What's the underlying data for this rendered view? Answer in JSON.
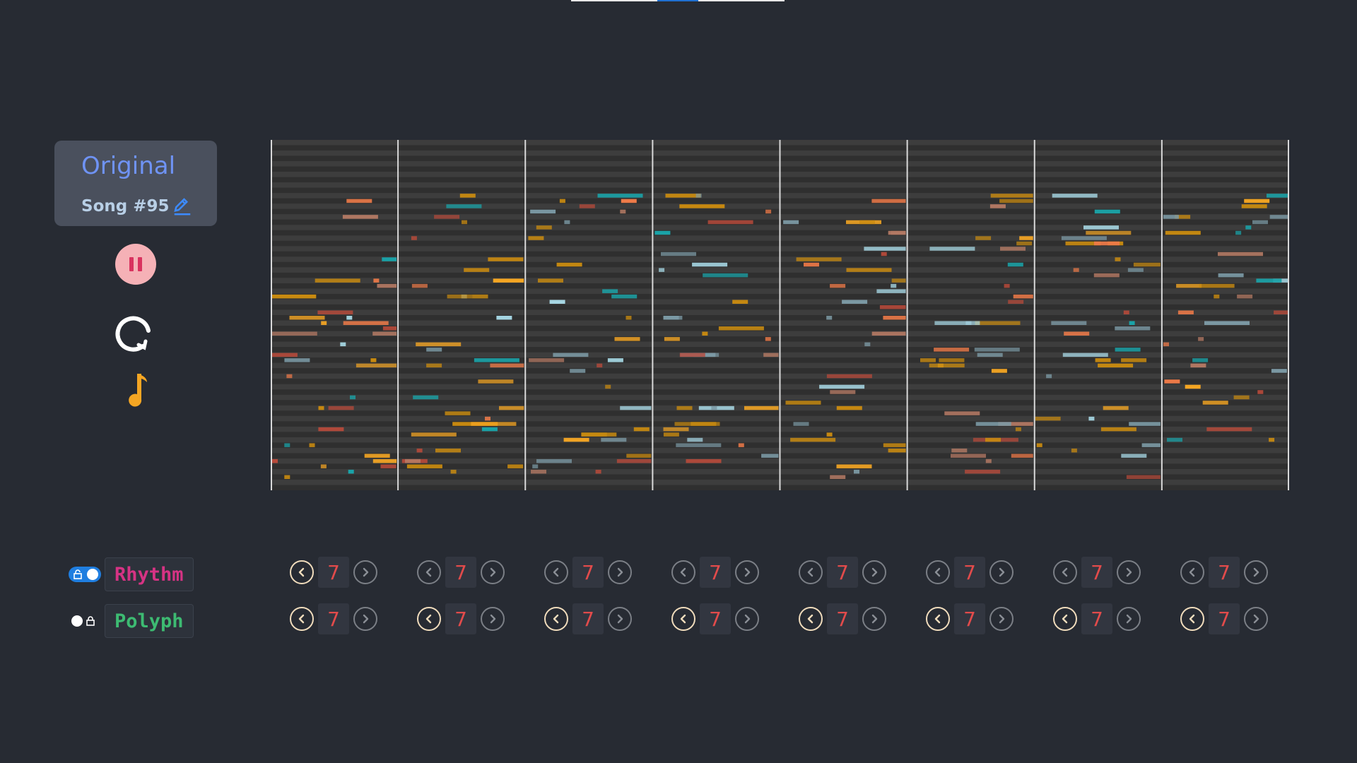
{
  "song": {
    "mode": "Original",
    "name": "Song #95"
  },
  "controls": [
    {
      "name": "pause",
      "icon": "pause-icon",
      "color": "#f5b1b6"
    },
    {
      "name": "loop",
      "icon": "loop-icon",
      "color": "#ffffff"
    },
    {
      "name": "instrument",
      "icon": "music-note-icon",
      "color": "#f5a623"
    }
  ],
  "tracks": [
    {
      "label": "Rhythm",
      "color": "#d63384",
      "toggle_on": true,
      "locked": true,
      "values": [
        "7",
        "7",
        "7",
        "7",
        "7",
        "7",
        "7",
        "7"
      ]
    },
    {
      "label": "Polyph",
      "color": "#3dbb72",
      "toggle_on": false,
      "locked": true,
      "values": [
        "7",
        "7",
        "7",
        "7",
        "7",
        "7",
        "7",
        "7"
      ]
    }
  ],
  "piano_roll": {
    "measures": 8,
    "background": "#2f2f2f",
    "row_color": "#3d3d3d",
    "note_colors": {
      "teal": "#1aa3a8",
      "sky": "#a9dbe8",
      "steel": "#7c9aa5",
      "gold": "#c88a10",
      "amber": "#f5a623",
      "orange": "#ee7a48",
      "tan": "#b57a64",
      "red": "#b84a3a"
    }
  }
}
